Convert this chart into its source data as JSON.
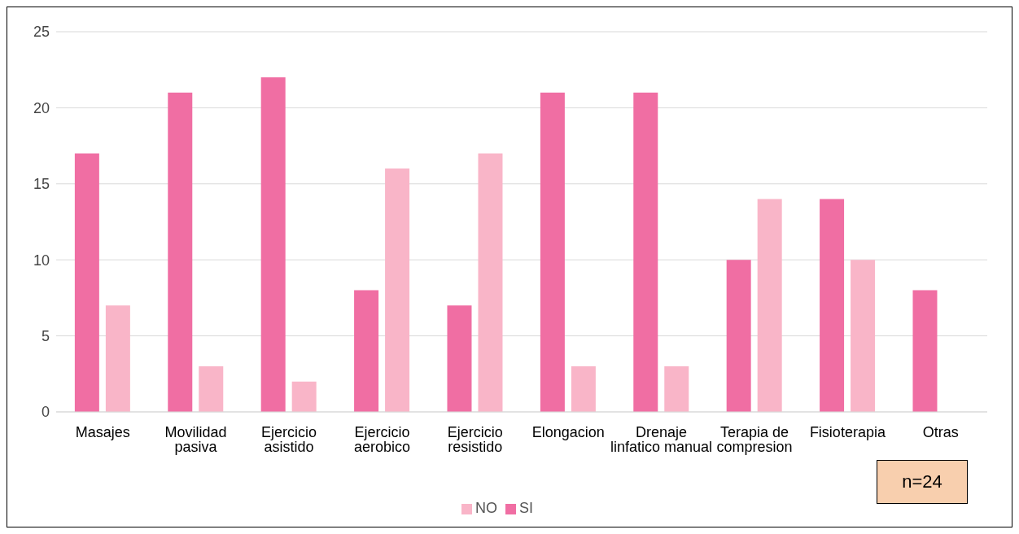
{
  "chart_data": {
    "type": "bar",
    "categories": [
      "Masajes",
      "Movilidad pasiva",
      "Ejercicio asistido",
      "Ejercicio aerobico",
      "Ejercicio resistido",
      "Elongacion",
      "Drenaje linfatico manual",
      "Terapia de compresion",
      "Fisioterapia",
      "Otras"
    ],
    "series": [
      {
        "name": "SI",
        "color": "#f06ea3",
        "values": [
          17,
          21,
          22,
          8,
          7,
          21,
          21,
          10,
          14,
          8
        ]
      },
      {
        "name": "NO",
        "color": "#f9b5c8",
        "values": [
          7,
          3,
          2,
          16,
          17,
          3,
          3,
          14,
          10,
          null
        ]
      }
    ],
    "ylim": [
      0,
      25
    ],
    "yticks": [
      0,
      5,
      10,
      15,
      20,
      25
    ],
    "grid": "y",
    "legend": "bottom",
    "annotations": [
      "n=24"
    ]
  }
}
